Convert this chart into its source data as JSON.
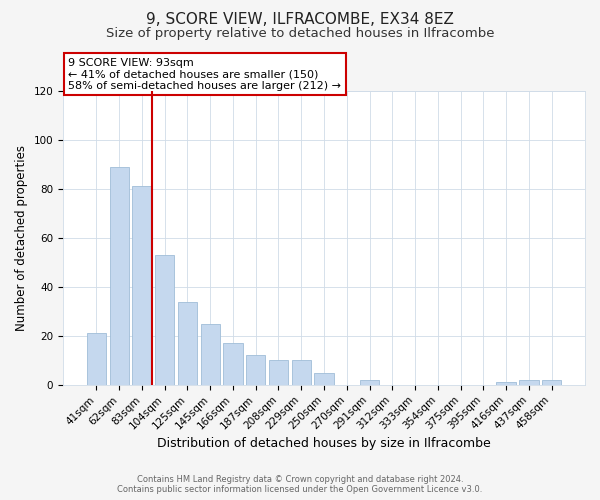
{
  "title": "9, SCORE VIEW, ILFRACOMBE, EX34 8EZ",
  "subtitle": "Size of property relative to detached houses in Ilfracombe",
  "xlabel": "Distribution of detached houses by size in Ilfracombe",
  "ylabel": "Number of detached properties",
  "categories": [
    "41sqm",
    "62sqm",
    "83sqm",
    "104sqm",
    "125sqm",
    "145sqm",
    "166sqm",
    "187sqm",
    "208sqm",
    "229sqm",
    "250sqm",
    "270sqm",
    "291sqm",
    "312sqm",
    "333sqm",
    "354sqm",
    "375sqm",
    "395sqm",
    "416sqm",
    "437sqm",
    "458sqm"
  ],
  "values": [
    21,
    89,
    81,
    53,
    34,
    25,
    17,
    12,
    10,
    10,
    5,
    0,
    2,
    0,
    0,
    0,
    0,
    0,
    1,
    2,
    2
  ],
  "bar_color": "#c5d8ee",
  "bar_edge_color": "#a0bdd8",
  "marker_line_color": "#cc0000",
  "annotation_line1": "9 SCORE VIEW: 93sqm",
  "annotation_line2": "← 41% of detached houses are smaller (150)",
  "annotation_line3": "58% of semi-detached houses are larger (212) →",
  "annotation_box_edge_color": "#cc0000",
  "ylim": [
    0,
    120
  ],
  "yticks": [
    0,
    20,
    40,
    60,
    80,
    100,
    120
  ],
  "footer_line1": "Contains HM Land Registry data © Crown copyright and database right 2024.",
  "footer_line2": "Contains public sector information licensed under the Open Government Licence v3.0.",
  "bg_color": "#f5f5f5",
  "plot_bg_color": "#ffffff",
  "grid_color": "#d0dce8",
  "title_fontsize": 11,
  "subtitle_fontsize": 9.5,
  "xlabel_fontsize": 9,
  "ylabel_fontsize": 8.5,
  "tick_fontsize": 7.5,
  "footer_fontsize": 6,
  "annotation_fontsize": 8
}
